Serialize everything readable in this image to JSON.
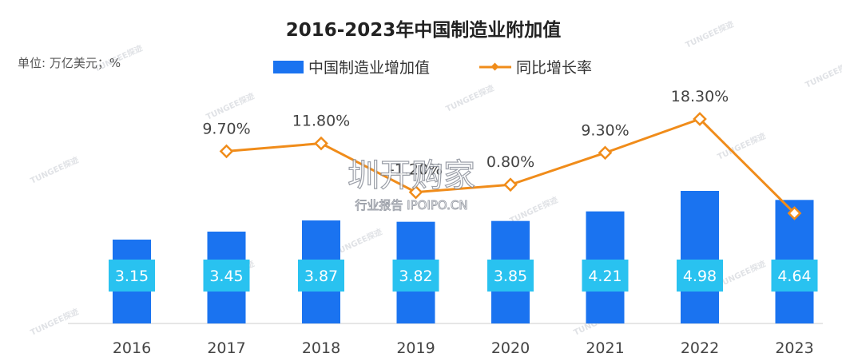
{
  "watermark": {
    "main": "圳开购家",
    "sub": "行业报告 IPOIPO.CN",
    "brand": "TUNGEE探迹"
  },
  "chart_data": {
    "type": "bar",
    "title": "2016-2023年中国制造业附加值",
    "unit": "单位: 万亿美元；%",
    "categories": [
      "2016",
      "2017",
      "2018",
      "2019",
      "2020",
      "2021",
      "2022",
      "2023"
    ],
    "series": [
      {
        "name": "中国制造业增加值",
        "type": "bar",
        "color": "#1a73f0",
        "values": [
          3.15,
          3.45,
          3.87,
          3.82,
          3.85,
          4.21,
          4.98,
          4.64
        ],
        "labels": [
          "3.15",
          "3.45",
          "3.87",
          "3.82",
          "3.85",
          "4.21",
          "4.98",
          "4.64"
        ]
      },
      {
        "name": "同比增长率",
        "type": "line",
        "color": "#f08c1a",
        "values": [
          null,
          9.7,
          11.8,
          -1.2,
          0.8,
          9.3,
          18.3,
          -6.8
        ],
        "labels": [
          "",
          "9.70%",
          "11.80%",
          "-1.20%",
          "0.80%",
          "9.30%",
          "18.30%",
          ""
        ]
      }
    ],
    "legend_position": "top-center",
    "grid": false,
    "label_box_color": "#29c2f0"
  }
}
